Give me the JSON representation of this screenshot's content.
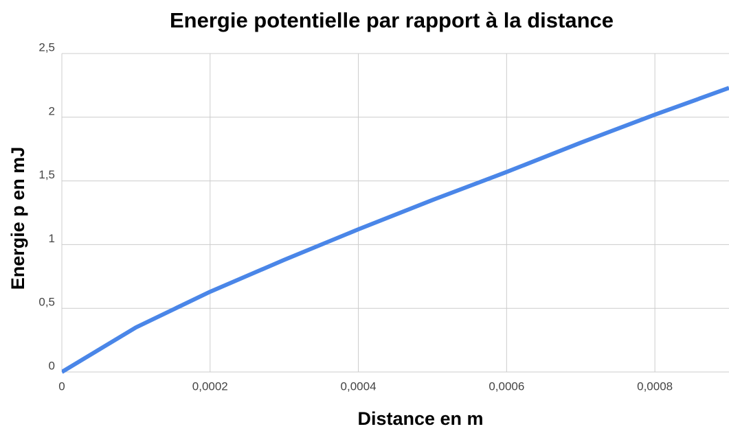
{
  "chart_data": {
    "type": "line",
    "title": "Energie potentielle par rapport à la distance",
    "x_label": "Distance en m",
    "y_label": "Energie p en mJ",
    "x": [
      0,
      0.0001,
      0.0002,
      0.0003,
      0.0004,
      0.0005,
      0.0006,
      0.0007,
      0.0008,
      0.0009
    ],
    "series": [
      {
        "name": "Energie p en mJ",
        "color": "#4a86e8",
        "values": [
          0,
          0.35,
          0.63,
          0.88,
          1.12,
          1.35,
          1.57,
          1.8,
          2.02,
          2.23
        ]
      }
    ],
    "xlim": [
      0,
      0.0009
    ],
    "ylim": [
      0,
      2.5
    ],
    "xticks": [
      0,
      {
        "value": 0.0002,
        "label": "0,0002"
      },
      {
        "value": 0.0004,
        "label": "0,0004"
      },
      {
        "value": 0.0006,
        "label": "0,0006"
      },
      {
        "value": 0.0008,
        "label": "0,0008"
      }
    ],
    "yticks": [
      0,
      {
        "value": 0.5,
        "label": "0,5"
      },
      1,
      {
        "value": 1.5,
        "label": "1,5"
      },
      2,
      {
        "value": 2.5,
        "label": "2,5"
      }
    ],
    "grid": true
  }
}
